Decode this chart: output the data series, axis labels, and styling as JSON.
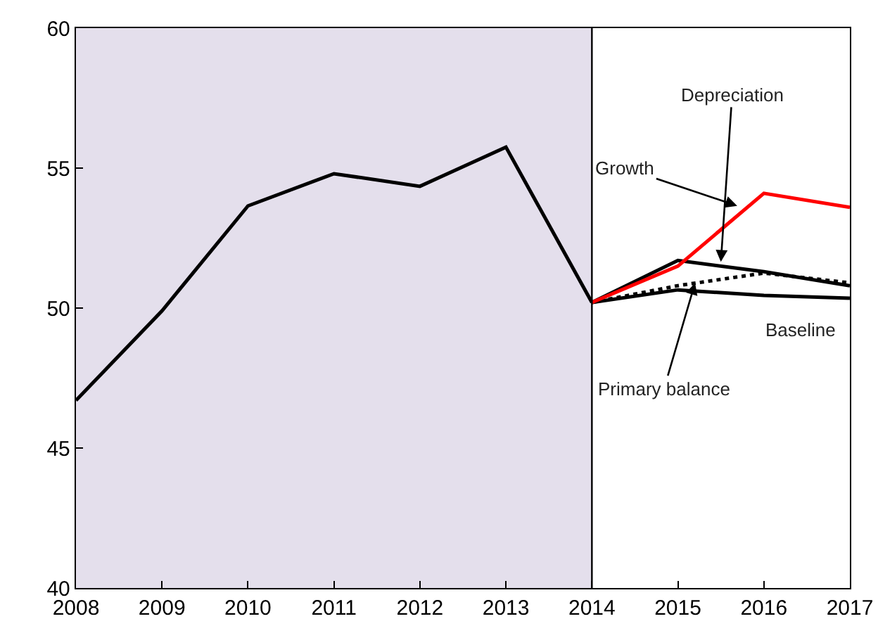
{
  "chart_data": {
    "type": "line",
    "series": [
      {
        "color": "#000000",
        "line_style": "solid",
        "x": [
          2008,
          2009,
          2010,
          2011,
          2012,
          2013,
          2014
        ],
        "values": [
          46.7,
          49.9,
          53.65,
          54.8,
          54.35,
          55.75,
          50.2
        ]
      },
      {
        "color": "#000000",
        "line_style": "solid",
        "x": [
          2014,
          2015,
          2016,
          2017
        ],
        "values": [
          50.2,
          50.65,
          50.45,
          50.35
        ]
      },
      {
        "color": "#000000",
        "line_style": "dotted",
        "x": [
          2014,
          2015,
          2016,
          2017
        ],
        "values": [
          50.2,
          50.8,
          51.25,
          50.9
        ]
      },
      {
        "color": "#000000",
        "line_style": "solid",
        "x": [
          2014,
          2015,
          2016,
          2017
        ],
        "values": [
          50.2,
          51.7,
          51.3,
          50.8
        ]
      },
      {
        "color": "#ff0000",
        "line_style": "solid",
        "x": [
          2014,
          2015,
          2016,
          2017
        ],
        "values": [
          50.2,
          51.5,
          54.1,
          53.6
        ]
      }
    ],
    "xlim": [
      2008,
      2017
    ],
    "xticks": [
      2008,
      2009,
      2010,
      2011,
      2012,
      2013,
      2014,
      2015,
      2016,
      2017
    ],
    "ylim": [
      40,
      60
    ],
    "yticks": [
      40,
      45,
      50,
      55,
      60
    ],
    "grid": false,
    "marker": "none",
    "bands": [
      {
        "axis": "x",
        "from": 2008,
        "to": 2014,
        "color": "#e4dfec"
      }
    ],
    "ref_lines": [
      {
        "axis": "x",
        "value": 2014,
        "color": "#000000"
      }
    ],
    "annotations": [
      {
        "text": "Growth",
        "x": 2015.69,
        "y": 53.65
      },
      {
        "text": "Depreciation",
        "x": 2015.5,
        "y": 51.65
      },
      {
        "text": "Primary balance",
        "x": 2015.2,
        "y": 50.9
      },
      "Baseline"
    ]
  }
}
